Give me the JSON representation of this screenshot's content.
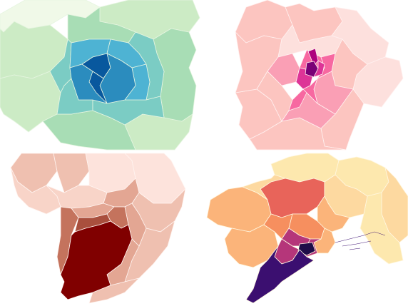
{
  "maps": [
    {
      "id": "green-blue",
      "palette": {
        "lightest": "#f0f9e8",
        "light": "#ccebc5",
        "mid": "#a8ddb5",
        "mid2": "#7bccc4",
        "dark": "#4eb3d3",
        "darker": "#2b8cbe",
        "darkest": "#08589e",
        "edge": "#e6f5e1"
      }
    },
    {
      "id": "pink-purple",
      "palette": {
        "lightest": "#fde0dd",
        "light": "#fcc5c0",
        "mid": "#fa9fb5",
        "mid2": "#f768a1",
        "dark": "#dd3497",
        "darker": "#ae017e",
        "darkest": "#7a0177",
        "edge": "#fff1f0"
      }
    },
    {
      "id": "reds",
      "palette": {
        "lightest": "#fde3dc",
        "light": "#f8d4c8",
        "mid": "#efc0b0",
        "mid2": "#e3a693",
        "dark": "#c4735d",
        "darker": "#a94f3d",
        "darkest": "#800000",
        "edge": "#fff4f0"
      }
    },
    {
      "id": "magma",
      "palette": {
        "lightest": "#fde8ae",
        "light": "#fdd9a0",
        "mid": "#fbb47a",
        "mid2": "#f68f5f",
        "dark": "#e8645a",
        "darker": "#b5367a",
        "darkest": "#3b0f70",
        "deep": "#1f0c48",
        "edge": "#fff7e0"
      }
    }
  ]
}
